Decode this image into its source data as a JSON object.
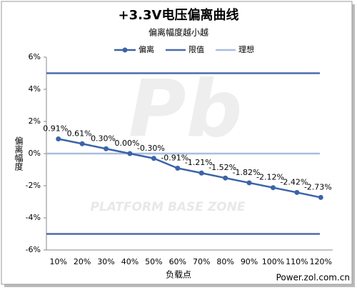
{
  "chart_data": {
    "type": "line",
    "title": "+3.3V电压偏离曲线",
    "subtitle": "偏离幅度越小越",
    "x_label": "负载点",
    "y_label": "偏离幅度",
    "watermark": "PLATFORM BASE ZONE",
    "source": "Power.zol.com.cn",
    "categories": [
      "10%",
      "20%",
      "30%",
      "40%",
      "50%",
      "60%",
      "70%",
      "80%",
      "90%",
      "100%",
      "110%",
      "120%"
    ],
    "series": [
      {
        "name": "偏离",
        "color": "#3b64a8",
        "values": [
          0.91,
          0.61,
          0.3,
          0.0,
          -0.3,
          -0.91,
          -1.21,
          -1.52,
          -1.82,
          -2.12,
          -2.42,
          -2.73
        ],
        "value_labels": [
          "0.91%",
          "0.61%",
          "0.30%",
          "0.00%",
          "-0.30%",
          "-0.91%",
          "-1.21%",
          "-1.52%",
          "-1.82%",
          "-2.12%",
          "-2.42%",
          "-2.73%"
        ]
      }
    ],
    "reference_lines": [
      {
        "name": "限值",
        "color": "#4a6db0",
        "values": [
          5,
          -5
        ]
      },
      {
        "name": "理想",
        "color": "#a9bde0",
        "values": [
          0
        ]
      }
    ],
    "ylim": [
      -6,
      6
    ],
    "yticks": [
      {
        "value": -6,
        "label": "-6%"
      },
      {
        "value": -4,
        "label": "-4%"
      },
      {
        "value": -2,
        "label": "-2%"
      },
      {
        "value": 0,
        "label": "0%"
      },
      {
        "value": 2,
        "label": "2%"
      },
      {
        "value": 4,
        "label": "4%"
      },
      {
        "value": 6,
        "label": "6%"
      }
    ],
    "legend": "top",
    "grid": false
  }
}
